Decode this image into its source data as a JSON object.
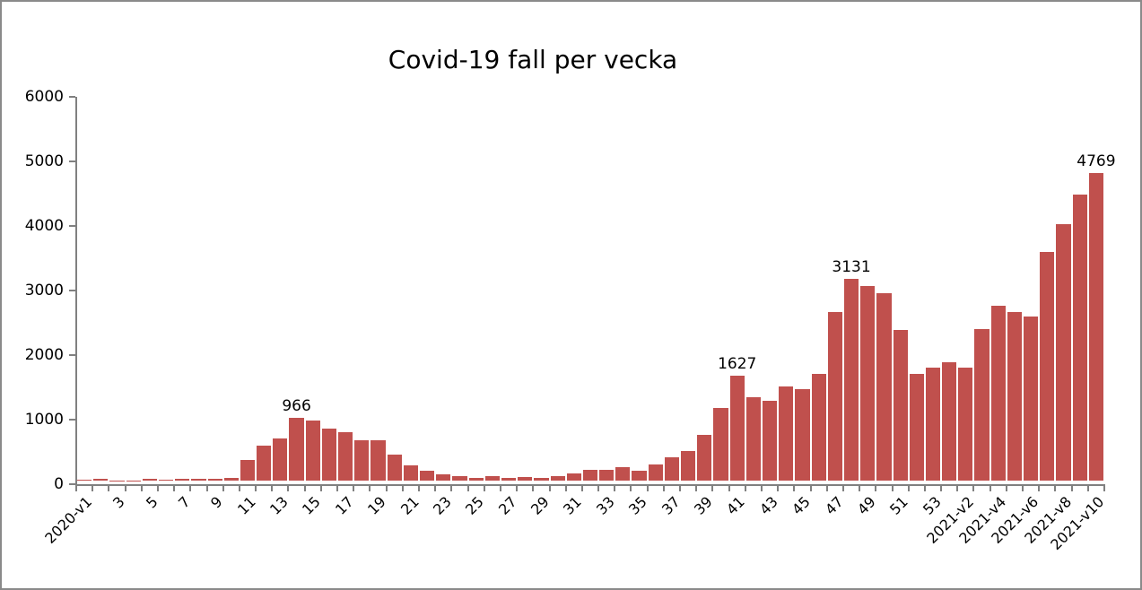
{
  "chart_data": {
    "type": "bar",
    "title": "Covid-19 fall per vecka",
    "xlabel": "",
    "ylabel": "",
    "ylim": [
      0,
      6000
    ],
    "y_ticks": [
      0,
      1000,
      2000,
      3000,
      4000,
      5000,
      6000
    ],
    "grid": false,
    "legend": false,
    "bar_color": "#C0504D",
    "axis_color": "#808080",
    "text_color": "#000000",
    "categories": [
      "2020-v1",
      "2020-v2",
      "2020-v3",
      "2020-v4",
      "2020-v5",
      "2020-v6",
      "2020-v7",
      "2020-v8",
      "2020-v9",
      "2020-v10",
      "2020-v11",
      "2020-v12",
      "2020-v13",
      "2020-v14",
      "2020-v15",
      "2020-v16",
      "2020-v17",
      "2020-v18",
      "2020-v19",
      "2020-v20",
      "2020-v21",
      "2020-v22",
      "2020-v23",
      "2020-v24",
      "2020-v25",
      "2020-v26",
      "2020-v27",
      "2020-v28",
      "2020-v29",
      "2020-v30",
      "2020-v31",
      "2020-v32",
      "2020-v33",
      "2020-v34",
      "2020-v35",
      "2020-v36",
      "2020-v37",
      "2020-v38",
      "2020-v39",
      "2020-v40",
      "2020-v41",
      "2020-v42",
      "2020-v43",
      "2020-v44",
      "2020-v45",
      "2020-v46",
      "2020-v47",
      "2020-v48",
      "2020-v49",
      "2020-v50",
      "2020-v51",
      "2020-v52",
      "2020-v53",
      "2021-v1",
      "2021-v2",
      "2021-v3",
      "2021-v4",
      "2021-v5",
      "2021-v6",
      "2021-v7",
      "2021-v8",
      "2021-v9",
      "2021-v10"
    ],
    "values": [
      10,
      25,
      5,
      5,
      30,
      8,
      28,
      25,
      22,
      45,
      320,
      545,
      650,
      966,
      930,
      800,
      750,
      625,
      620,
      400,
      230,
      155,
      100,
      70,
      46,
      74,
      46,
      55,
      46,
      74,
      110,
      168,
      168,
      205,
      157,
      255,
      355,
      465,
      710,
      1130,
      1627,
      1285,
      1240,
      1465,
      1420,
      1650,
      2610,
      3131,
      3020,
      2905,
      2335,
      1655,
      1750,
      1835,
      1750,
      2350,
      2710,
      2610,
      2545,
      3540,
      3975,
      4430,
      4769
    ],
    "x_tick_labels": [
      {
        "index": 0,
        "label": "2020-v1"
      },
      {
        "index": 2,
        "label": "3"
      },
      {
        "index": 4,
        "label": "5"
      },
      {
        "index": 6,
        "label": "7"
      },
      {
        "index": 8,
        "label": "9"
      },
      {
        "index": 10,
        "label": "11"
      },
      {
        "index": 12,
        "label": "13"
      },
      {
        "index": 14,
        "label": "15"
      },
      {
        "index": 16,
        "label": "17"
      },
      {
        "index": 18,
        "label": "19"
      },
      {
        "index": 20,
        "label": "21"
      },
      {
        "index": 22,
        "label": "23"
      },
      {
        "index": 24,
        "label": "25"
      },
      {
        "index": 26,
        "label": "27"
      },
      {
        "index": 28,
        "label": "29"
      },
      {
        "index": 30,
        "label": "31"
      },
      {
        "index": 32,
        "label": "33"
      },
      {
        "index": 34,
        "label": "35"
      },
      {
        "index": 36,
        "label": "37"
      },
      {
        "index": 38,
        "label": "39"
      },
      {
        "index": 40,
        "label": "41"
      },
      {
        "index": 42,
        "label": "43"
      },
      {
        "index": 44,
        "label": "45"
      },
      {
        "index": 46,
        "label": "47"
      },
      {
        "index": 48,
        "label": "49"
      },
      {
        "index": 50,
        "label": "51"
      },
      {
        "index": 52,
        "label": "53"
      },
      {
        "index": 54,
        "label": "2021-v2"
      },
      {
        "index": 56,
        "label": "2021-v4"
      },
      {
        "index": 58,
        "label": "2021-v6"
      },
      {
        "index": 60,
        "label": "2021-v8"
      },
      {
        "index": 62,
        "label": "2021-v10"
      }
    ],
    "annotations": [
      {
        "index": 13,
        "text": "966"
      },
      {
        "index": 40,
        "text": "1627"
      },
      {
        "index": 47,
        "text": "3131"
      },
      {
        "index": 62,
        "text": "4769"
      }
    ]
  }
}
